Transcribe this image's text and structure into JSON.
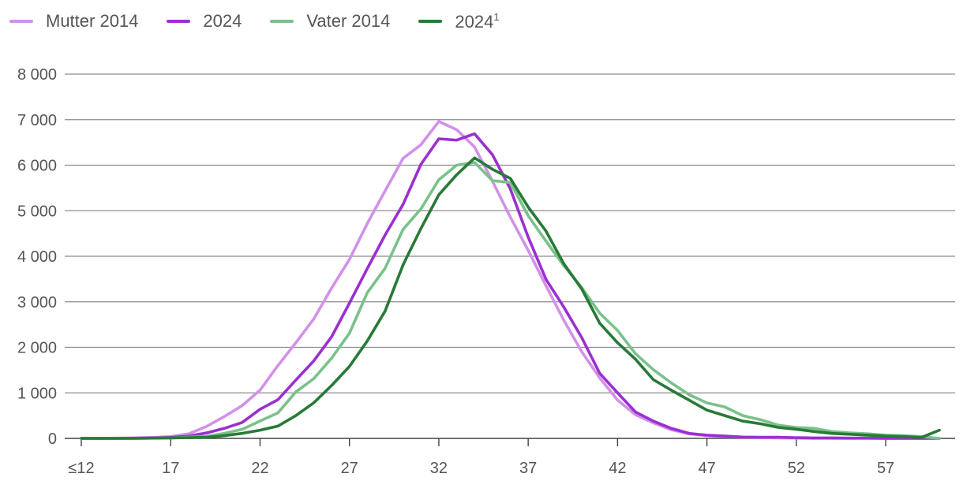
{
  "chart_data": {
    "type": "line",
    "title": "",
    "xlabel": "",
    "ylabel": "",
    "x": [
      "≤12",
      "13",
      "14",
      "15",
      "16",
      "17",
      "18",
      "19",
      "20",
      "21",
      "22",
      "23",
      "24",
      "25",
      "26",
      "27",
      "28",
      "29",
      "30",
      "31",
      "32",
      "33",
      "34",
      "35",
      "36",
      "37",
      "38",
      "39",
      "40",
      "41",
      "42",
      "43",
      "44",
      "45",
      "46",
      "47",
      "48",
      "49",
      "50",
      "51",
      "52",
      "53",
      "54",
      "55",
      "56",
      "57",
      "58",
      "59",
      "60"
    ],
    "x_tick_labels": [
      "≤12",
      "17",
      "22",
      "27",
      "32",
      "37",
      "42",
      "47",
      "52",
      "57"
    ],
    "y_tick_labels": [
      "0",
      "1 000",
      "2 000",
      "3 000",
      "4 000",
      "5 000",
      "6 000",
      "7 000",
      "8 000"
    ],
    "ylim": [
      0,
      8000
    ],
    "grid": true,
    "legend_position": "top-left",
    "series": [
      {
        "name": "Mutter 2014",
        "color": "#d291e8",
        "values": [
          0,
          0,
          5,
          10,
          20,
          40,
          100,
          260,
          480,
          720,
          1060,
          1600,
          2100,
          2620,
          3300,
          3930,
          4720,
          5440,
          6150,
          6450,
          6960,
          6780,
          6400,
          5650,
          4860,
          4130,
          3350,
          2590,
          1900,
          1330,
          840,
          520,
          340,
          190,
          100,
          60,
          40,
          25,
          15,
          10,
          5,
          0,
          0,
          0,
          0,
          0,
          0,
          0,
          0
        ]
      },
      {
        "name": "2024",
        "color": "#9b2fd1",
        "values": [
          0,
          0,
          0,
          5,
          10,
          20,
          50,
          120,
          220,
          350,
          640,
          850,
          1280,
          1700,
          2230,
          2970,
          3730,
          4470,
          5140,
          6020,
          6580,
          6550,
          6690,
          6230,
          5480,
          4420,
          3490,
          2880,
          2210,
          1430,
          1000,
          580,
          380,
          220,
          110,
          70,
          50,
          30,
          25,
          25,
          15,
          10,
          10,
          5,
          5,
          0,
          0,
          0,
          0
        ]
      },
      {
        "name": "Vater 2014",
        "color": "#7ac18b",
        "values": [
          0,
          0,
          0,
          0,
          5,
          10,
          25,
          45,
          110,
          200,
          380,
          560,
          1020,
          1310,
          1760,
          2310,
          3200,
          3740,
          4590,
          5040,
          5680,
          6000,
          6060,
          5660,
          5620,
          4890,
          4330,
          3790,
          3310,
          2750,
          2370,
          1860,
          1510,
          1220,
          960,
          780,
          690,
          500,
          410,
          290,
          240,
          220,
          150,
          120,
          100,
          70,
          60,
          40,
          0
        ]
      },
      {
        "name": "2024¹",
        "color": "#277a37",
        "values": [
          0,
          0,
          0,
          0,
          5,
          10,
          15,
          25,
          60,
          110,
          180,
          270,
          500,
          780,
          1160,
          1580,
          2140,
          2800,
          3810,
          4610,
          5350,
          5790,
          6160,
          5910,
          5710,
          5080,
          4550,
          3830,
          3280,
          2530,
          2100,
          1740,
          1290,
          1060,
          840,
          620,
          500,
          380,
          320,
          240,
          200,
          150,
          110,
          90,
          70,
          50,
          40,
          20,
          180
        ]
      }
    ]
  }
}
